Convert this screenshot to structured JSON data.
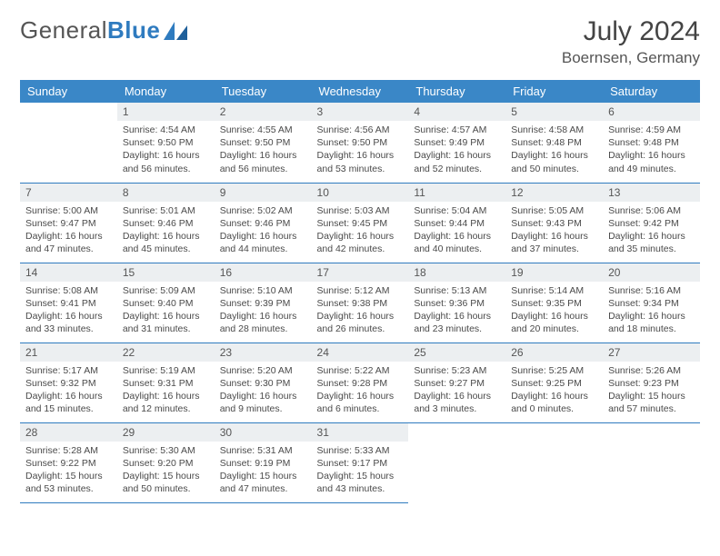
{
  "brand": {
    "part1": "General",
    "part2": "Blue"
  },
  "header": {
    "title": "July 2024",
    "location": "Boernsen, Germany"
  },
  "style": {
    "header_bg": "#3a87c7",
    "header_fg": "#ffffff",
    "daynum_bg": "#eceff1",
    "divider": "#2f7bbf",
    "body_fontsize": 10.5,
    "title_fontsize": 30
  },
  "weekdays": [
    "Sunday",
    "Monday",
    "Tuesday",
    "Wednesday",
    "Thursday",
    "Friday",
    "Saturday"
  ],
  "start_offset": 1,
  "days_in_month": 31,
  "days": {
    "1": {
      "sunrise": "4:54 AM",
      "sunset": "9:50 PM",
      "daylight": "16 hours and 56 minutes."
    },
    "2": {
      "sunrise": "4:55 AM",
      "sunset": "9:50 PM",
      "daylight": "16 hours and 56 minutes."
    },
    "3": {
      "sunrise": "4:56 AM",
      "sunset": "9:50 PM",
      "daylight": "16 hours and 53 minutes."
    },
    "4": {
      "sunrise": "4:57 AM",
      "sunset": "9:49 PM",
      "daylight": "16 hours and 52 minutes."
    },
    "5": {
      "sunrise": "4:58 AM",
      "sunset": "9:48 PM",
      "daylight": "16 hours and 50 minutes."
    },
    "6": {
      "sunrise": "4:59 AM",
      "sunset": "9:48 PM",
      "daylight": "16 hours and 49 minutes."
    },
    "7": {
      "sunrise": "5:00 AM",
      "sunset": "9:47 PM",
      "daylight": "16 hours and 47 minutes."
    },
    "8": {
      "sunrise": "5:01 AM",
      "sunset": "9:46 PM",
      "daylight": "16 hours and 45 minutes."
    },
    "9": {
      "sunrise": "5:02 AM",
      "sunset": "9:46 PM",
      "daylight": "16 hours and 44 minutes."
    },
    "10": {
      "sunrise": "5:03 AM",
      "sunset": "9:45 PM",
      "daylight": "16 hours and 42 minutes."
    },
    "11": {
      "sunrise": "5:04 AM",
      "sunset": "9:44 PM",
      "daylight": "16 hours and 40 minutes."
    },
    "12": {
      "sunrise": "5:05 AM",
      "sunset": "9:43 PM",
      "daylight": "16 hours and 37 minutes."
    },
    "13": {
      "sunrise": "5:06 AM",
      "sunset": "9:42 PM",
      "daylight": "16 hours and 35 minutes."
    },
    "14": {
      "sunrise": "5:08 AM",
      "sunset": "9:41 PM",
      "daylight": "16 hours and 33 minutes."
    },
    "15": {
      "sunrise": "5:09 AM",
      "sunset": "9:40 PM",
      "daylight": "16 hours and 31 minutes."
    },
    "16": {
      "sunrise": "5:10 AM",
      "sunset": "9:39 PM",
      "daylight": "16 hours and 28 minutes."
    },
    "17": {
      "sunrise": "5:12 AM",
      "sunset": "9:38 PM",
      "daylight": "16 hours and 26 minutes."
    },
    "18": {
      "sunrise": "5:13 AM",
      "sunset": "9:36 PM",
      "daylight": "16 hours and 23 minutes."
    },
    "19": {
      "sunrise": "5:14 AM",
      "sunset": "9:35 PM",
      "daylight": "16 hours and 20 minutes."
    },
    "20": {
      "sunrise": "5:16 AM",
      "sunset": "9:34 PM",
      "daylight": "16 hours and 18 minutes."
    },
    "21": {
      "sunrise": "5:17 AM",
      "sunset": "9:32 PM",
      "daylight": "16 hours and 15 minutes."
    },
    "22": {
      "sunrise": "5:19 AM",
      "sunset": "9:31 PM",
      "daylight": "16 hours and 12 minutes."
    },
    "23": {
      "sunrise": "5:20 AM",
      "sunset": "9:30 PM",
      "daylight": "16 hours and 9 minutes."
    },
    "24": {
      "sunrise": "5:22 AM",
      "sunset": "9:28 PM",
      "daylight": "16 hours and 6 minutes."
    },
    "25": {
      "sunrise": "5:23 AM",
      "sunset": "9:27 PM",
      "daylight": "16 hours and 3 minutes."
    },
    "26": {
      "sunrise": "5:25 AM",
      "sunset": "9:25 PM",
      "daylight": "16 hours and 0 minutes."
    },
    "27": {
      "sunrise": "5:26 AM",
      "sunset": "9:23 PM",
      "daylight": "15 hours and 57 minutes."
    },
    "28": {
      "sunrise": "5:28 AM",
      "sunset": "9:22 PM",
      "daylight": "15 hours and 53 minutes."
    },
    "29": {
      "sunrise": "5:30 AM",
      "sunset": "9:20 PM",
      "daylight": "15 hours and 50 minutes."
    },
    "30": {
      "sunrise": "5:31 AM",
      "sunset": "9:19 PM",
      "daylight": "15 hours and 47 minutes."
    },
    "31": {
      "sunrise": "5:33 AM",
      "sunset": "9:17 PM",
      "daylight": "15 hours and 43 minutes."
    }
  }
}
